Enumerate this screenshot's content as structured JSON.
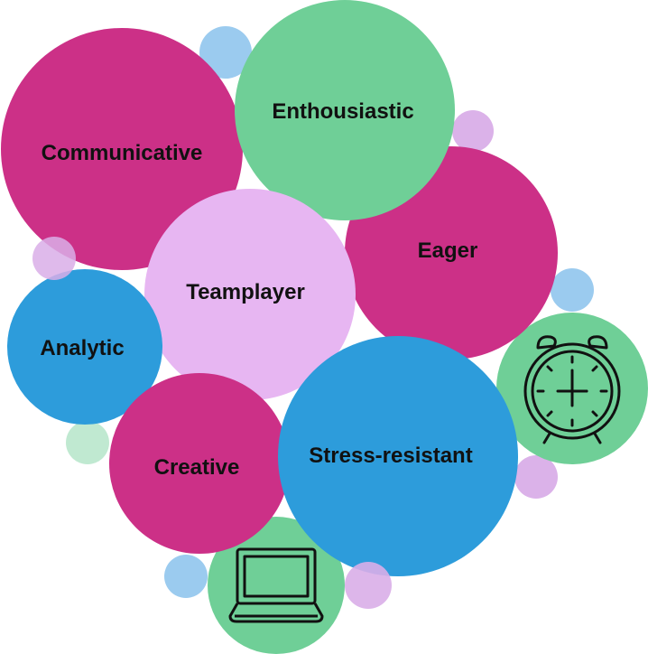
{
  "colors": {
    "magenta": "#cc3087",
    "green": "#6fcf97",
    "lavender": "#e7b6f2",
    "blue": "#2d9cdb",
    "light_blue": "#96c8ee",
    "light_violet": "#d9aee8",
    "pale_green": "#bde8cf",
    "icon_stroke": "#111111",
    "label_text": "#111111"
  },
  "bubbles": [
    {
      "id": "communicative",
      "label": "Communicative",
      "color": "magenta"
    },
    {
      "id": "enthousiastic",
      "label": "Enthousiastic",
      "color": "green"
    },
    {
      "id": "eager",
      "label": "Eager",
      "color": "magenta"
    },
    {
      "id": "teamplayer",
      "label": "Teamplayer",
      "color": "lavender"
    },
    {
      "id": "analytic",
      "label": "Analytic",
      "color": "blue"
    },
    {
      "id": "creative",
      "label": "Creative",
      "color": "magenta"
    },
    {
      "id": "stress-resistant",
      "label": "Stress-resistant",
      "color": "blue"
    }
  ],
  "icons": [
    {
      "id": "alarm-clock",
      "name": "alarm-clock-icon",
      "bubble_color": "green"
    },
    {
      "id": "laptop",
      "name": "laptop-icon",
      "bubble_color": "green"
    }
  ]
}
